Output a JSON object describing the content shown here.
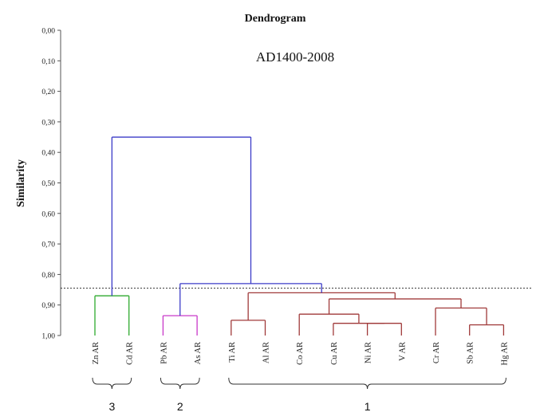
{
  "chart_data": {
    "type": "dendrogram",
    "title": "Dendrogram",
    "subtitle": "AD1400-2008",
    "ylabel": "Similarity",
    "ylim": [
      0,
      1
    ],
    "y_axis_inverted": true,
    "y_ticks": [
      "0,00",
      "0,10",
      "0,20",
      "0,30",
      "0,40",
      "0,50",
      "0,60",
      "0,70",
      "0,80",
      "0,90",
      "1,00"
    ],
    "leaves": [
      "Zn AR",
      "Cd AR",
      "Pb AR",
      "As AR",
      "Ti AR",
      "Al AR",
      "Co AR",
      "Cu AR",
      "Ni AR",
      "V AR",
      "Cr AR",
      "Sb AR",
      "Hg AR"
    ],
    "cutoff_similarity": 0.845,
    "merges": [
      {
        "left": "Zn AR",
        "right": "Cd AR",
        "similarity": 0.87,
        "cluster": 3
      },
      {
        "left": "Pb AR",
        "right": "As AR",
        "similarity": 0.935,
        "cluster": 2
      },
      {
        "left": "Ti AR",
        "right": "Al AR",
        "similarity": 0.95,
        "cluster": 1
      },
      {
        "left": "Ni AR",
        "right": "V AR",
        "similarity": 0.96,
        "cluster": 1
      },
      {
        "left": "Cu AR",
        "right": "Ni AR + V AR",
        "similarity": 0.96,
        "cluster": 1
      },
      {
        "left": "Co AR",
        "right": "Cu AR + Ni AR + V AR",
        "similarity": 0.93,
        "cluster": 1
      },
      {
        "left": "Sb AR",
        "right": "Hg AR",
        "similarity": 0.965,
        "cluster": 1
      },
      {
        "left": "Cr AR",
        "right": "Sb AR + Hg AR",
        "similarity": 0.91,
        "cluster": 1
      },
      {
        "left": "Co..V",
        "right": "Cr..Hg",
        "similarity": 0.88,
        "cluster": 1
      },
      {
        "left": "Ti AR + Al AR",
        "right": "Co..Hg",
        "similarity": 0.86,
        "cluster": 1
      },
      {
        "left": "Pb AR + As AR",
        "right": "Ti..Hg",
        "similarity": 0.83,
        "cluster": null
      },
      {
        "left": "Zn AR + Cd AR",
        "right": "Pb..Hg",
        "similarity": 0.35,
        "cluster": null
      }
    ],
    "groups": [
      {
        "label": "3",
        "from": "Zn AR",
        "to": "Cd AR"
      },
      {
        "label": "2",
        "from": "Pb AR",
        "to": "As AR"
      },
      {
        "label": "1",
        "from": "Ti AR",
        "to": "Hg AR"
      }
    ],
    "colors": {
      "cluster_3": "#2eaa2e",
      "cluster_2": "#c838c8",
      "cluster_1": "#a03a3a",
      "upper_links": "#3c3cc8",
      "axis": "#555555",
      "cutoff_line": "#333333"
    }
  }
}
